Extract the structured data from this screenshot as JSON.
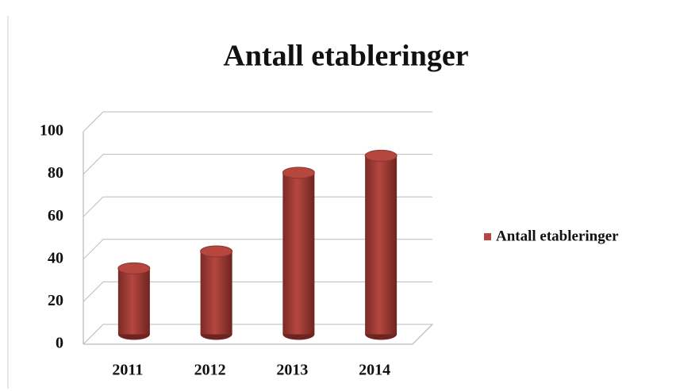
{
  "chart_data": {
    "type": "bar3d",
    "title": "Antall etableringer",
    "categories": [
      "2011",
      "2012",
      "2013",
      "2014"
    ],
    "series": [
      {
        "name": "Antall etableringer",
        "color": "#b5473f",
        "values": [
          31,
          39,
          76,
          84
        ]
      }
    ],
    "ylim": [
      0,
      100
    ],
    "yticks": [
      0,
      20,
      40,
      60,
      80,
      100
    ],
    "grid": true,
    "legend": "right"
  }
}
